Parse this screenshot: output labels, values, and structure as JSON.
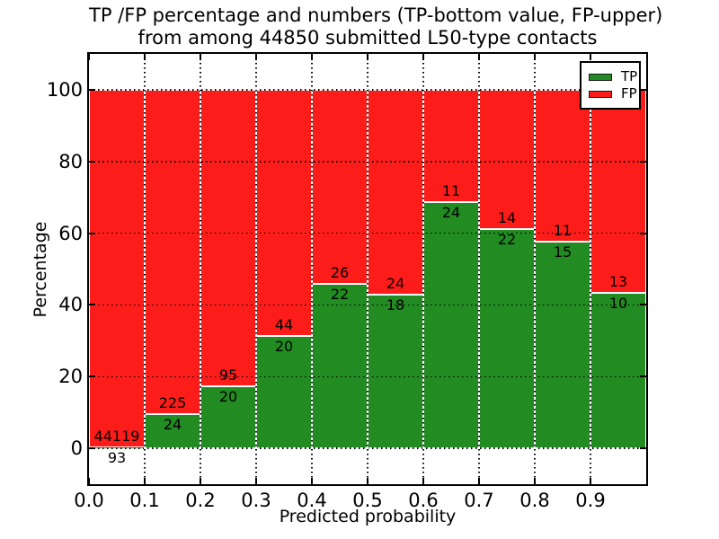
{
  "figure": {
    "title_line1": "TP /FP percentage and numbers (TP-bottom value, FP-upper)",
    "title_line2": "from among 44850 submitted L50-type contacts"
  },
  "chart_data": {
    "type": "bar",
    "stacked": true,
    "normalized": "percent_of_bin_total",
    "title": "TP /FP percentage and numbers (TP-bottom value, FP-upper) from among 44850 submitted L50-type contacts",
    "xlabel": "Predicted probability",
    "ylabel": "Percentage",
    "bins": [
      0.0,
      0.1,
      0.2,
      0.3,
      0.4,
      0.5,
      0.6,
      0.7,
      0.8,
      0.9
    ],
    "bin_width": 0.1,
    "series": [
      {
        "name": "TP",
        "color": "#228b22",
        "values": [
          93,
          24,
          20,
          20,
          22,
          18,
          24,
          22,
          15,
          10
        ]
      },
      {
        "name": "FP",
        "color": "#fc1d1a",
        "values": [
          44119,
          225,
          95,
          44,
          26,
          24,
          11,
          14,
          11,
          13
        ]
      }
    ],
    "total_contacts": 44850,
    "xticks": [
      "0.0",
      "0.1",
      "0.2",
      "0.3",
      "0.4",
      "0.5",
      "0.6",
      "0.7",
      "0.8",
      "0.9"
    ],
    "yticks": [
      "0",
      "20",
      "40",
      "60",
      "80",
      "100"
    ],
    "xlim": [
      0.0,
      1.0
    ],
    "ylim": [
      -10,
      110
    ],
    "grid": {
      "style": "dotted",
      "color": "#000000"
    },
    "legend": {
      "position": "upper right",
      "entries": [
        {
          "label": "TP",
          "color": "#228b22"
        },
        {
          "label": "FP",
          "color": "#fc1d1a"
        }
      ]
    }
  }
}
